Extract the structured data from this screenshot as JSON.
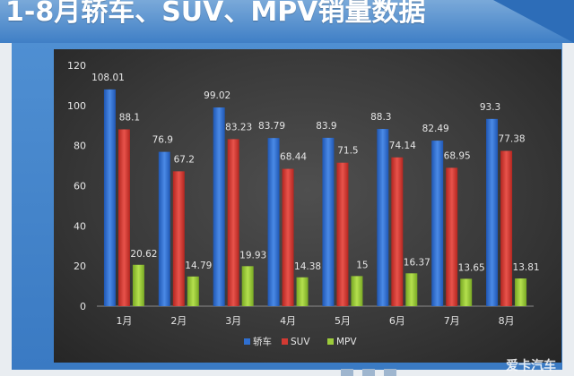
{
  "header": {
    "title": "1-8月轿车、SUV、MPV销量数据"
  },
  "watermark": "爱卡汽车",
  "colors": {
    "series": [
      "#2f6fd0",
      "#d23a33",
      "#9ccb3a"
    ],
    "tick_text": "#e6e6e6",
    "grid": "#555555"
  },
  "chart_data": {
    "type": "bar",
    "title": "",
    "xlabel": "",
    "ylabel": "",
    "ylim": [
      0,
      120
    ],
    "yticks": [
      0,
      20,
      40,
      60,
      80,
      100,
      120
    ],
    "grid": false,
    "legend": "bottom",
    "categories": [
      "1月",
      "2月",
      "3月",
      "4月",
      "5月",
      "6月",
      "7月",
      "8月"
    ],
    "series": [
      {
        "name": "轿车",
        "values": [
          108.01,
          76.9,
          99.02,
          83.79,
          83.9,
          88.3,
          82.49,
          93.3
        ]
      },
      {
        "name": "SUV",
        "values": [
          88.1,
          67.2,
          83.23,
          68.44,
          71.5,
          74.14,
          68.95,
          77.38
        ]
      },
      {
        "name": "MPV",
        "values": [
          20.62,
          14.79,
          19.93,
          14.38,
          15,
          16.37,
          13.65,
          13.81
        ]
      }
    ]
  }
}
